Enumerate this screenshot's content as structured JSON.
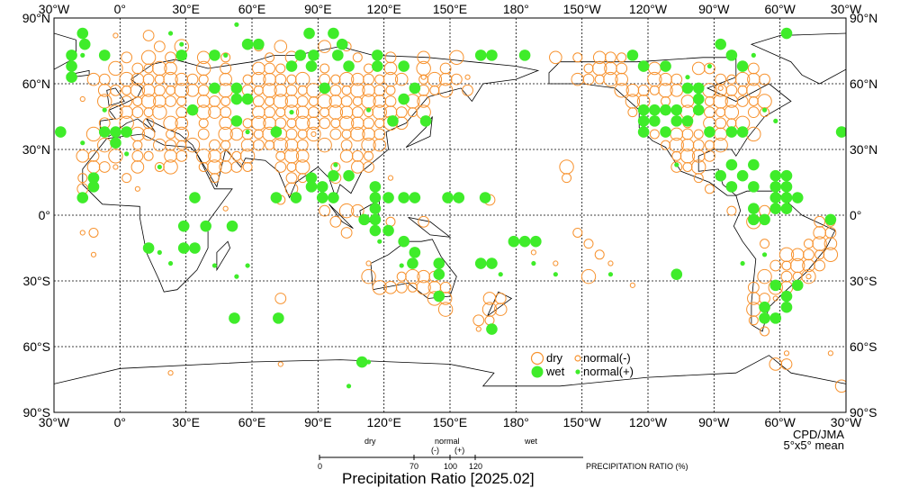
{
  "chart_data": {
    "type": "map",
    "title": "Precipitation Ratio [2025.02]",
    "credit": "CPD/JMA",
    "resolution": "5°x5° mean",
    "lon_ticks": [
      "30°W",
      "0°",
      "30°E",
      "60°E",
      "90°E",
      "120°E",
      "150°E",
      "180°",
      "150°W",
      "120°W",
      "90°W",
      "60°W",
      "30°W"
    ],
    "lat_ticks": [
      "90°N",
      "60°N",
      "30°N",
      "0°",
      "30°S",
      "60°S",
      "90°S"
    ],
    "lon_range": [
      -30,
      330
    ],
    "lat_range": [
      -90,
      90
    ],
    "grid": true,
    "legend": {
      "dry": "dry",
      "wet": "wet",
      "normal_minus": "normal(-)",
      "normal_plus": "normal(+)"
    },
    "scale": {
      "label": "PRECIPITATION RATIO  (%)",
      "dry": "dry",
      "normal": "normal",
      "minus": "(-)",
      "plus": "(+)",
      "wet": "wet",
      "ticks": [
        "0",
        "70",
        "100",
        "120"
      ]
    },
    "colors": {
      "dry": "#f7922e",
      "wet": "#3fec2a",
      "line": "#000000"
    },
    "wet_points": [
      [
        -17,
        83
      ],
      [
        -16,
        78
      ],
      [
        -22,
        73
      ],
      [
        -22,
        68
      ],
      [
        -22,
        63
      ],
      [
        -7,
        73
      ],
      [
        -27,
        38
      ],
      [
        -2,
        38
      ],
      [
        -2,
        33
      ],
      [
        -7,
        38
      ],
      [
        3,
        38
      ],
      [
        -12,
        17
      ],
      [
        -12,
        13
      ],
      [
        -17,
        8
      ],
      [
        28,
        73
      ],
      [
        43,
        73
      ],
      [
        58,
        78
      ],
      [
        63,
        78
      ],
      [
        86,
        83
      ],
      [
        97,
        83
      ],
      [
        82,
        73
      ],
      [
        88,
        73
      ],
      [
        104,
        68
      ],
      [
        117,
        73
      ],
      [
        117,
        68
      ],
      [
        129,
        68
      ],
      [
        99,
        73
      ],
      [
        87,
        68
      ],
      [
        78,
        68
      ],
      [
        43,
        58
      ],
      [
        53,
        58
      ],
      [
        53,
        53
      ],
      [
        58,
        53
      ],
      [
        33,
        48
      ],
      [
        53,
        43
      ],
      [
        71,
        38
      ],
      [
        34,
        8
      ],
      [
        29,
        -5
      ],
      [
        34,
        -15
      ],
      [
        29,
        -15
      ],
      [
        39,
        -5
      ],
      [
        51,
        -5
      ],
      [
        13,
        -15
      ],
      [
        87,
        17
      ],
      [
        92,
        13
      ],
      [
        92,
        8
      ],
      [
        97,
        8
      ],
      [
        97,
        18
      ],
      [
        87,
        13
      ],
      [
        71,
        8
      ],
      [
        80,
        8
      ],
      [
        104,
        18
      ],
      [
        116,
        13
      ],
      [
        116,
        8
      ],
      [
        116,
        3
      ],
      [
        116,
        -2
      ],
      [
        116,
        -7
      ],
      [
        111,
        -2
      ],
      [
        122,
        8
      ],
      [
        129,
        8
      ],
      [
        134,
        8
      ],
      [
        122,
        -7
      ],
      [
        129,
        -12
      ],
      [
        134,
        -17
      ],
      [
        133,
        -22
      ],
      [
        145,
        -22
      ],
      [
        145,
        -27
      ],
      [
        145,
        -37
      ],
      [
        149,
        8
      ],
      [
        154,
        8
      ],
      [
        164,
        -22
      ],
      [
        169,
        -22
      ],
      [
        169,
        -52
      ],
      [
        179,
        -12
      ],
      [
        184,
        -12
      ],
      [
        189,
        -12
      ],
      [
        166,
        8
      ],
      [
        169,
        73
      ],
      [
        164,
        73
      ],
      [
        184,
        73
      ],
      [
        129,
        53
      ],
      [
        139,
        43
      ],
      [
        124,
        43
      ],
      [
        134,
        58
      ],
      [
        93,
        58
      ],
      [
        101,
        78
      ],
      [
        -107,
        -27
      ],
      [
        -127,
        73
      ],
      [
        -122,
        68
      ],
      [
        -112,
        68
      ],
      [
        -102,
        58
      ],
      [
        -97,
        58
      ],
      [
        -97,
        53
      ],
      [
        -122,
        48
      ],
      [
        -122,
        43
      ],
      [
        -122,
        38
      ],
      [
        -117,
        48
      ],
      [
        -117,
        43
      ],
      [
        -112,
        48
      ],
      [
        -107,
        48
      ],
      [
        -107,
        43
      ],
      [
        -102,
        43
      ],
      [
        -97,
        48
      ],
      [
        -112,
        38
      ],
      [
        -92,
        38
      ],
      [
        -82,
        38
      ],
      [
        -77,
        38
      ],
      [
        -82,
        23
      ],
      [
        -72,
        23
      ],
      [
        -77,
        18
      ],
      [
        -72,
        13
      ],
      [
        -82,
        13
      ],
      [
        -87,
        18
      ],
      [
        -62,
        18
      ],
      [
        -57,
        18
      ],
      [
        -62,
        13
      ],
      [
        -57,
        13
      ],
      [
        -72,
        3
      ],
      [
        -72,
        -2
      ],
      [
        -62,
        8
      ],
      [
        -57,
        8
      ],
      [
        -52,
        8
      ],
      [
        -57,
        3
      ],
      [
        -62,
        3
      ],
      [
        -67,
        -2
      ],
      [
        -37,
        -2
      ],
      [
        -52,
        -32
      ],
      [
        -57,
        -37
      ],
      [
        -57,
        -42
      ],
      [
        -62,
        -32
      ],
      [
        -67,
        -42
      ],
      [
        -67,
        -47
      ],
      [
        -62,
        -47
      ],
      [
        -82,
        73
      ],
      [
        -87,
        78
      ],
      [
        -77,
        68
      ],
      [
        -57,
        83
      ],
      [
        -32,
        38
      ],
      [
        52,
        -47
      ],
      [
        72,
        -47
      ],
      [
        110,
        -67
      ]
    ],
    "dry_rows": [
      [
        82,
        [
          13
        ]
      ],
      [
        77,
        [
          18,
          28,
          63,
          73,
          93,
          103
        ]
      ],
      [
        72,
        [
          3,
          13,
          23,
          38,
          48,
          68,
          78,
          108,
          123,
          138,
          153,
          -162,
          -152,
          -142,
          -137,
          -132
        ]
      ],
      [
        67,
        [
          -2,
          8,
          13,
          18,
          23,
          38,
          48,
          63,
          68,
          73,
          93,
          113,
          123,
          138,
          148,
          -147,
          -142,
          -137,
          -132,
          -117,
          -97,
          -92,
          -72
        ]
      ],
      [
        62,
        [
          -12,
          -7,
          3,
          8,
          13,
          18,
          23,
          28,
          33,
          38,
          48,
          58,
          63,
          68,
          73,
          78,
          83,
          93,
          98,
          103,
          108,
          113,
          118,
          123,
          128,
          138,
          143,
          148,
          153,
          -152,
          -147,
          -142,
          -137,
          -132,
          -117,
          -112,
          -107,
          -87,
          -82,
          -77,
          -72,
          -67
        ]
      ],
      [
        57,
        [
          -7,
          -2,
          3,
          8,
          13,
          18,
          23,
          28,
          33,
          38,
          48,
          58,
          63,
          68,
          73,
          78,
          83,
          88,
          98,
          103,
          108,
          113,
          118,
          123,
          138,
          143,
          148,
          158,
          -132,
          -127,
          -122,
          -117,
          -112,
          -107,
          -92,
          -87,
          -82,
          -77,
          -72
        ]
      ],
      [
        52,
        [
          -7,
          3,
          8,
          13,
          18,
          23,
          28,
          38,
          43,
          48,
          63,
          68,
          73,
          78,
          83,
          88,
          93,
          98,
          103,
          108,
          113,
          118,
          123,
          133,
          138,
          -127,
          -122,
          -112,
          -102,
          -92,
          -87,
          -82,
          -77,
          -72,
          -67
        ]
      ],
      [
        47,
        [
          -2,
          3,
          8,
          13,
          18,
          28,
          38,
          43,
          48,
          63,
          68,
          73,
          78,
          83,
          88,
          93,
          98,
          103,
          108,
          113,
          118,
          123,
          128,
          133,
          138,
          -127,
          -102,
          -92,
          -87,
          -82,
          -72,
          -67
        ]
      ],
      [
        42,
        [
          -7,
          3,
          13,
          23,
          28,
          38,
          48,
          58,
          63,
          68,
          73,
          78,
          83,
          88,
          93,
          98,
          103,
          108,
          113,
          118,
          123,
          128,
          -102,
          -92,
          -87,
          -82,
          -77
        ]
      ],
      [
        37,
        [
          -12,
          8,
          13,
          23,
          28,
          38,
          48,
          53,
          58,
          63,
          68,
          73,
          78,
          83,
          88,
          98,
          103,
          108,
          113,
          118,
          -117,
          -107,
          -102,
          -97,
          -87,
          -72
        ]
      ],
      [
        32,
        [
          -7,
          8,
          18,
          23,
          28,
          33,
          43,
          48,
          58,
          63,
          68,
          73,
          78,
          83,
          93,
          103,
          113,
          118,
          -112,
          -107,
          -102,
          -97,
          -92,
          -87
        ]
      ],
      [
        27,
        [
          -17,
          -12,
          -2,
          8,
          13,
          23,
          28,
          38,
          43,
          48,
          53,
          58,
          73,
          78,
          83,
          103,
          108,
          113,
          -107,
          -102,
          -97,
          -92
        ]
      ],
      [
        22,
        [
          -12,
          -7,
          8,
          18,
          23,
          38,
          43,
          48,
          53,
          58,
          73,
          78,
          83,
          98,
          108,
          113,
          -157,
          -107,
          -102,
          -97
        ]
      ],
      [
        17,
        [
          -17,
          3,
          43,
          78,
          83,
          98,
          -157,
          -97
        ]
      ],
      [
        12,
        [
          -17,
          78,
          -92
        ]
      ],
      [
        7,
        [
          73,
          168
        ]
      ],
      [
        2,
        [
          93,
          103,
          108,
          -82,
          -67
        ]
      ],
      [
        -3,
        [
          98,
          123,
          138,
          -72,
          -42,
          -37
        ]
      ],
      [
        -8,
        [
          -12,
          103,
          -152,
          -42,
          -37
        ]
      ],
      [
        -13,
        [
          -147,
          -67,
          -47,
          -42,
          -37
        ]
      ],
      [
        -18,
        [
          -142,
          -57,
          -52,
          -47,
          -42,
          -37
        ]
      ],
      [
        -23,
        [
          -62,
          -57,
          -52,
          -47,
          -42
        ]
      ],
      [
        -28,
        [
          113,
          128,
          133,
          138,
          143,
          -147,
          -67,
          -57,
          -52,
          -47
        ]
      ],
      [
        -33,
        [
          118,
          123,
          128,
          133,
          138,
          143,
          148,
          -72,
          -62,
          -57
        ]
      ],
      [
        -38,
        [
          73,
          143,
          148,
          168,
          173,
          -72,
          -67
        ]
      ],
      [
        -43,
        [
          148,
          168,
          173,
          -72
        ]
      ],
      [
        -48,
        [
          163,
          168,
          -72
        ]
      ],
      [
        -53,
        [
          -67
        ]
      ],
      [
        -68,
        [
          -62,
          -57
        ]
      ],
      [
        -78,
        [
          -32
        ]
      ]
    ],
    "normal_minus_points": [
      [
        -17,
        53
      ],
      [
        -2,
        22
      ],
      [
        8,
        12
      ],
      [
        48,
        3
      ],
      [
        -17,
        -8
      ],
      [
        -12,
        -18
      ],
      [
        88,
        37
      ],
      [
        123,
        17
      ],
      [
        138,
        63
      ],
      [
        158,
        63
      ],
      [
        -2,
        82
      ],
      [
        163,
        -52
      ],
      [
        -162,
        -22
      ],
      [
        -137,
        -22
      ],
      [
        -172,
        -17
      ],
      [
        -127,
        -32
      ],
      [
        -57,
        -63
      ],
      [
        23,
        -72
      ],
      [
        73,
        -68
      ],
      [
        -37,
        -63
      ],
      [
        -87,
        58
      ],
      [
        -62,
        -38
      ],
      [
        -47,
        -28
      ],
      [
        113,
        -22
      ]
    ],
    "normal_plus_points": [
      [
        -17,
        73
      ],
      [
        53,
        87
      ],
      [
        23,
        83
      ],
      [
        28,
        78
      ],
      [
        48,
        73
      ],
      [
        113,
        -67
      ],
      [
        104,
        -78
      ],
      [
        -137,
        -27
      ],
      [
        -162,
        -27
      ],
      [
        -172,
        -22
      ],
      [
        173,
        -27
      ],
      [
        -17,
        33
      ],
      [
        3,
        28
      ],
      [
        18,
        22
      ],
      [
        23,
        -22
      ],
      [
        43,
        -23
      ],
      [
        53,
        -28
      ],
      [
        58,
        -23
      ],
      [
        18,
        -17
      ],
      [
        98,
        23
      ],
      [
        118,
        -12
      ],
      [
        128,
        -23
      ],
      [
        -72,
        73
      ],
      [
        -92,
        68
      ],
      [
        -102,
        63
      ],
      [
        -62,
        43
      ],
      [
        -67,
        48
      ],
      [
        -107,
        23
      ],
      [
        -67,
        -18
      ],
      [
        -77,
        -22
      ],
      [
        58,
        38
      ],
      [
        78,
        47
      ],
      [
        113,
        48
      ],
      [
        -7,
        48
      ]
    ]
  }
}
